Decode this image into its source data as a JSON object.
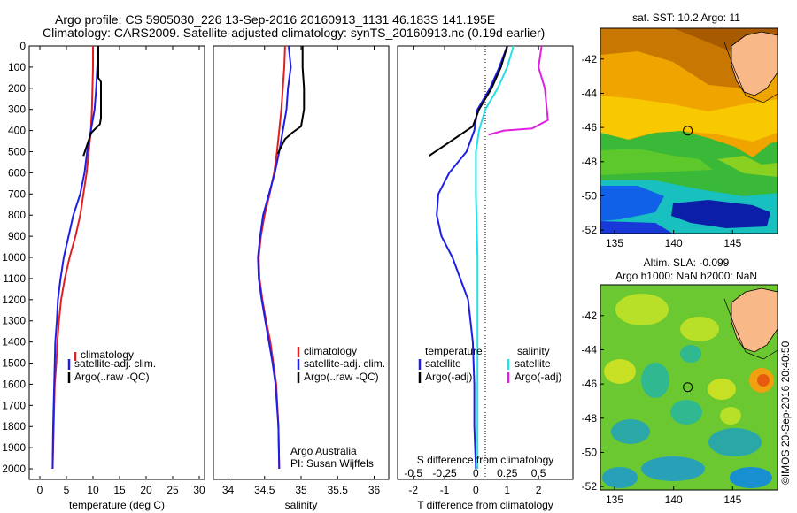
{
  "header": {
    "line1": "Argo profile: CS 5905030_226 13-Sep-2016 20160913_1131 46.183S 141.195E",
    "line2": "Climatology: CARS2009. Satellite-adjusted climatology: synTS_20160913.nc (0.19d earlier)"
  },
  "credits": {
    "agency": "Argo Australia",
    "pi": "PI: Susan Wijffels"
  },
  "watermark": "©IMOS 20-Sep-2016 20:40:50",
  "colors": {
    "red": "#e02020",
    "blue": "#1e1ee6",
    "black": "#000000",
    "cyan": "#22e0e6",
    "magenta": "#e020e0"
  },
  "chart_data": [
    {
      "type": "line",
      "id": "temperature",
      "xlabel": "temperature (deg C)",
      "xlim": [
        -2,
        31
      ],
      "ylim": [
        2050,
        0
      ],
      "xticks": [
        0,
        5,
        10,
        15,
        20,
        25,
        30
      ],
      "yticks": [
        0,
        100,
        200,
        300,
        400,
        500,
        600,
        700,
        800,
        900,
        1000,
        1100,
        1200,
        1300,
        1400,
        1500,
        1600,
        1700,
        1800,
        1900,
        2000
      ],
      "legend": [
        "climatology",
        "satellite-adj. clim.",
        "Argo(..raw -QC)"
      ],
      "series": [
        {
          "name": "climatology",
          "color": "red",
          "x": [
            10,
            10,
            9.9,
            9.8,
            9.6,
            9.2,
            8.8,
            8.2,
            7.6,
            6.7,
            5.6,
            4.7,
            4,
            3.6,
            3.3,
            3.1,
            2.8,
            2.6,
            2.4
          ],
          "y": [
            0,
            100,
            200,
            300,
            400,
            500,
            600,
            700,
            800,
            900,
            1000,
            1100,
            1200,
            1300,
            1400,
            1500,
            1600,
            1800,
            2000
          ]
        },
        {
          "name": "satellite-adj. clim.",
          "color": "blue",
          "x": [
            11,
            10.8,
            10.6,
            10.3,
            9.6,
            8.9,
            8.4,
            7.6,
            6.3,
            5.4,
            4.5,
            3.9,
            3.4,
            3.2,
            2.9,
            2.8,
            2.7,
            2.5,
            2.4
          ],
          "y": [
            0,
            100,
            200,
            300,
            400,
            500,
            600,
            700,
            800,
            900,
            1000,
            1100,
            1200,
            1300,
            1400,
            1500,
            1600,
            1800,
            2000
          ]
        },
        {
          "name": "Argo(..raw -QC)",
          "color": "black",
          "x": [
            11,
            11,
            11.5,
            11.5,
            11.3,
            10.5,
            9.7,
            9,
            8.2
          ],
          "y": [
            0,
            150,
            170,
            340,
            370,
            390,
            410,
            460,
            520
          ]
        }
      ]
    },
    {
      "type": "line",
      "id": "salinity",
      "xlabel": "salinity",
      "xlim": [
        33.8,
        36.2
      ],
      "ylim": [
        2050,
        0
      ],
      "xticks": [
        34,
        34.5,
        35,
        35.5,
        36
      ],
      "legend": [
        "climatology",
        "satellite-adj. clim.",
        "Argo(..raw -QC)"
      ],
      "series": [
        {
          "name": "climatology",
          "color": "red",
          "x": [
            34.78,
            34.77,
            34.75,
            34.73,
            34.7,
            34.67,
            34.63,
            34.57,
            34.5,
            34.45,
            34.42,
            34.43,
            34.47,
            34.52,
            34.58,
            34.62,
            34.66,
            34.69,
            34.7
          ],
          "y": [
            0,
            100,
            200,
            300,
            400,
            500,
            600,
            700,
            800,
            900,
            1000,
            1100,
            1200,
            1300,
            1400,
            1500,
            1600,
            1800,
            2000
          ]
        },
        {
          "name": "satellite-adj. clim.",
          "color": "blue",
          "x": [
            34.83,
            34.86,
            34.82,
            34.8,
            34.75,
            34.7,
            34.64,
            34.56,
            34.48,
            34.44,
            34.41,
            34.42,
            34.46,
            34.51,
            34.56,
            34.61,
            34.65,
            34.69,
            34.7
          ],
          "y": [
            0,
            100,
            200,
            300,
            400,
            500,
            600,
            700,
            800,
            900,
            1000,
            1100,
            1200,
            1300,
            1400,
            1500,
            1600,
            1800,
            2000
          ]
        },
        {
          "name": "Argo(..raw -QC)",
          "color": "black",
          "x": [
            35.02,
            35.02,
            35.04,
            35.04,
            35.0,
            34.88,
            34.78,
            34.68
          ],
          "y": [
            0,
            100,
            200,
            300,
            380,
            410,
            440,
            510
          ]
        }
      ]
    },
    {
      "type": "line",
      "id": "difference",
      "xlabel": "T difference from climatology",
      "xlabel_top": "S difference from climatology",
      "xlim": [
        -2.5,
        3.1
      ],
      "ylim": [
        2050,
        0
      ],
      "xticks": [
        -2,
        -1,
        0,
        1,
        2
      ],
      "s_ticks": [
        -0.5,
        -0.25,
        0,
        0.25,
        0.5
      ],
      "legend_headers": [
        "temperature",
        "salinity"
      ],
      "legend": [
        "satellite",
        "Argo(-adj)",
        "satellite",
        "Argo(-adj)"
      ],
      "series": [
        {
          "name": "T satellite",
          "color": "blue",
          "x": [
            1,
            0.75,
            0.45,
            0.05,
            -0.05,
            -0.3,
            -0.85,
            -1.2,
            -1.25,
            -1.1,
            -0.75,
            -0.5,
            -0.25,
            -0.1,
            -0.05,
            -0.05,
            0
          ],
          "y": [
            0,
            100,
            200,
            300,
            400,
            500,
            600,
            700,
            800,
            900,
            1000,
            1100,
            1200,
            1400,
            1600,
            1800,
            2000
          ]
        },
        {
          "name": "T Argo(-adj)",
          "color": "black",
          "x": [
            1,
            0.8,
            0.5,
            0.1,
            -0.1,
            -0.9,
            -1.5
          ],
          "y": [
            0,
            100,
            200,
            300,
            380,
            460,
            520
          ]
        },
        {
          "name": "S satellite",
          "color": "cyan",
          "x": [
            1.2,
            1,
            0.7,
            0.3,
            0.1,
            0,
            0,
            0.05,
            0.05,
            0.05,
            0.05
          ],
          "y": [
            0,
            100,
            200,
            300,
            400,
            500,
            700,
            1000,
            1400,
            1800,
            2000
          ]
        },
        {
          "name": "S Argo(-adj)",
          "color": "magenta",
          "x": [
            2.1,
            2,
            2.2,
            2.3,
            1.8,
            0.9,
            0.4
          ],
          "y": [
            0,
            100,
            200,
            350,
            390,
            400,
            420
          ]
        }
      ]
    }
  ],
  "maps": {
    "sst": {
      "title": "sat. SST: 10.2 Argo: 11",
      "lon_ticks": [
        135,
        140,
        145
      ],
      "lat_ticks": [
        -42,
        -44,
        -46,
        -48,
        -50,
        -52
      ],
      "argo_lon": 141.195,
      "argo_lat": -46.183
    },
    "sla": {
      "title1": "Altim. SLA: -0.099",
      "title2": "Argo h1000: NaN h2000: NaN",
      "lon_ticks": [
        135,
        140,
        145
      ],
      "lat_ticks": [
        -42,
        -44,
        -46,
        -48,
        -50,
        -52
      ],
      "argo_lon": 141.195,
      "argo_lat": -46.183
    }
  }
}
